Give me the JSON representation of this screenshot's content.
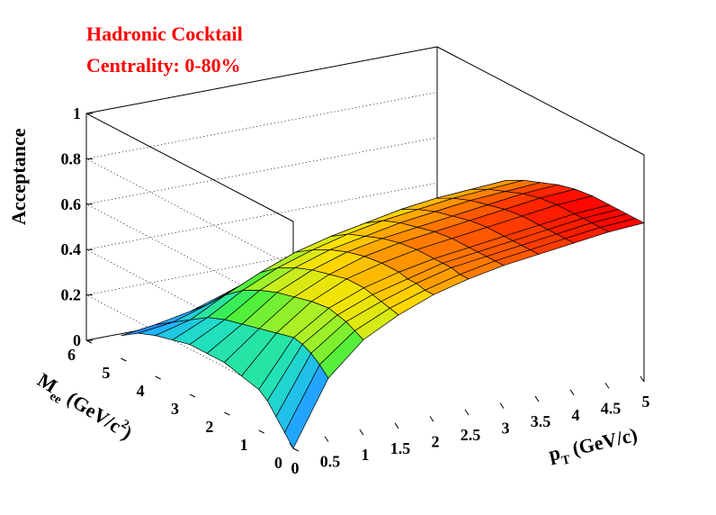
{
  "colors": {
    "title": "#ff0000",
    "axis": "#000000",
    "grid": "#000000",
    "palette": [
      "#5a00d8",
      "#3060ff",
      "#20b0ff",
      "#20e0c0",
      "#40f040",
      "#c0f020",
      "#ffe000",
      "#ff8000",
      "#ff0000"
    ]
  },
  "chart_data": {
    "type": "surface3d",
    "title_lines": [
      "Hadronic Cocktail",
      "Centrality: 0-80%"
    ],
    "z_axis": {
      "label": "Acceptance",
      "range": [
        0,
        1
      ],
      "ticks": [
        "0",
        "0.2",
        "0.4",
        "0.6",
        "0.8",
        "1"
      ]
    },
    "y_axis": {
      "label_main": "M",
      "label_sub": "ee",
      "label_rest": " (GeV/c",
      "label_sup": "2",
      "label_close": ")",
      "range": [
        0,
        6
      ],
      "ticks": [
        "0",
        "1",
        "2",
        "3",
        "4",
        "5",
        "6"
      ]
    },
    "x_axis": {
      "label_main": "p",
      "label_sub": "T",
      "label_rest": " (GeV/c)",
      "range": [
        0,
        5
      ],
      "ticks": [
        "0",
        "0.5",
        "1",
        "1.5",
        "2",
        "2.5",
        "3",
        "3.5",
        "4",
        "4.5",
        "5"
      ]
    },
    "pt": [
      0,
      0.5,
      1,
      1.5,
      2,
      2.5,
      3,
      3.5,
      4,
      4.5,
      5
    ],
    "mass": [
      0,
      0.25,
      0.5,
      0.75,
      1,
      1.5,
      2,
      2.5,
      3,
      3.5,
      4,
      4.5,
      5
    ],
    "acceptance": [
      [
        0.0,
        0.28,
        0.42,
        0.5,
        0.56,
        0.6,
        0.63,
        0.65,
        0.67,
        0.69,
        0.7
      ],
      [
        0.05,
        0.32,
        0.44,
        0.51,
        0.56,
        0.6,
        0.63,
        0.65,
        0.67,
        0.69,
        0.7
      ],
      [
        0.1,
        0.35,
        0.46,
        0.52,
        0.57,
        0.61,
        0.63,
        0.65,
        0.67,
        0.69,
        0.7
      ],
      [
        0.15,
        0.37,
        0.47,
        0.53,
        0.57,
        0.61,
        0.63,
        0.65,
        0.67,
        0.69,
        0.7
      ],
      [
        0.18,
        0.38,
        0.48,
        0.54,
        0.58,
        0.61,
        0.63,
        0.65,
        0.67,
        0.69,
        0.7
      ],
      [
        0.2,
        0.36,
        0.47,
        0.54,
        0.58,
        0.61,
        0.63,
        0.65,
        0.67,
        0.69,
        0.7
      ],
      [
        0.22,
        0.34,
        0.45,
        0.52,
        0.57,
        0.6,
        0.62,
        0.64,
        0.66,
        0.68,
        0.69
      ],
      [
        0.22,
        0.32,
        0.43,
        0.5,
        0.55,
        0.58,
        0.6,
        0.62,
        0.64,
        0.66,
        0.67
      ],
      [
        0.22,
        0.3,
        0.4,
        0.47,
        0.52,
        0.55,
        0.58,
        0.6,
        0.62,
        0.63,
        0.64
      ],
      [
        0.2,
        0.27,
        0.36,
        0.43,
        0.48,
        0.52,
        0.55,
        0.57,
        0.59,
        0.6,
        0.61
      ],
      [
        0.18,
        0.22,
        0.3,
        0.37,
        0.43,
        0.47,
        0.5,
        0.53,
        0.55,
        0.56,
        0.57
      ],
      [
        0.15,
        0.17,
        0.22,
        0.28,
        0.34,
        0.39,
        0.43,
        0.46,
        0.48,
        0.5,
        0.51
      ],
      [
        0.1,
        0.12,
        0.15,
        0.2,
        0.25,
        0.3,
        0.34,
        0.37,
        0.4,
        0.42,
        0.43
      ]
    ],
    "grid": true
  }
}
